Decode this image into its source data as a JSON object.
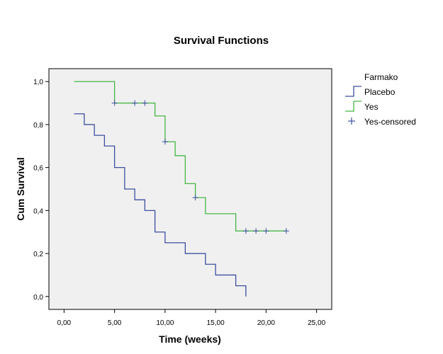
{
  "chart_data": {
    "type": "line",
    "title": "Survival Functions",
    "xlabel": "Time (weeks)",
    "ylabel": "Cum Survival",
    "xlim": [
      -1.5,
      26.5
    ],
    "ylim": [
      -0.06,
      1.06
    ],
    "x_ticks": [
      0,
      5,
      10,
      15,
      20,
      25
    ],
    "x_tick_labels": [
      "0,00",
      "5,00",
      "10,00",
      "15,00",
      "20,00",
      "25,00"
    ],
    "y_ticks": [
      0,
      0.2,
      0.4,
      0.6,
      0.8,
      1.0
    ],
    "y_tick_labels": [
      "0,0",
      "0,2",
      "0,4",
      "0,6",
      "0,8",
      "1,0"
    ],
    "grid": false,
    "legend": {
      "title": "Farmako",
      "placement": "right",
      "entries": [
        {
          "label": "Placebo",
          "symbol": "step",
          "color": "#3c4fa0"
        },
        {
          "label": "Yes",
          "symbol": "step",
          "color": "#44b744"
        },
        {
          "label": "Yes-censored",
          "symbol": "plus",
          "color": "#3c4fa0"
        }
      ]
    },
    "series": [
      {
        "name": "Placebo",
        "color": "#3c4fa0",
        "step": true,
        "x": [
          1,
          2,
          3,
          4,
          5,
          6,
          7,
          8,
          9,
          10,
          12,
          14,
          15,
          17,
          18
        ],
        "y": [
          0.85,
          0.8,
          0.75,
          0.7,
          0.6,
          0.5,
          0.45,
          0.4,
          0.3,
          0.25,
          0.2,
          0.15,
          0.1,
          0.05,
          0.0
        ]
      },
      {
        "name": "Yes",
        "color": "#44b744",
        "step": true,
        "x": [
          1,
          5,
          9,
          10,
          11,
          12,
          13,
          14,
          17,
          22
        ],
        "y": [
          1.0,
          0.9,
          0.84,
          0.72,
          0.655,
          0.525,
          0.46,
          0.385,
          0.305,
          0.305
        ]
      }
    ],
    "censored": {
      "name": "Yes-censored",
      "color": "#3c4fa0",
      "x": [
        5,
        7,
        8,
        10,
        13,
        18,
        19,
        20,
        22
      ],
      "y": [
        0.9,
        0.9,
        0.9,
        0.72,
        0.46,
        0.305,
        0.305,
        0.305,
        0.305
      ]
    },
    "colors": {
      "plot_background": "#f0f0f0",
      "frame": "#000000"
    }
  }
}
